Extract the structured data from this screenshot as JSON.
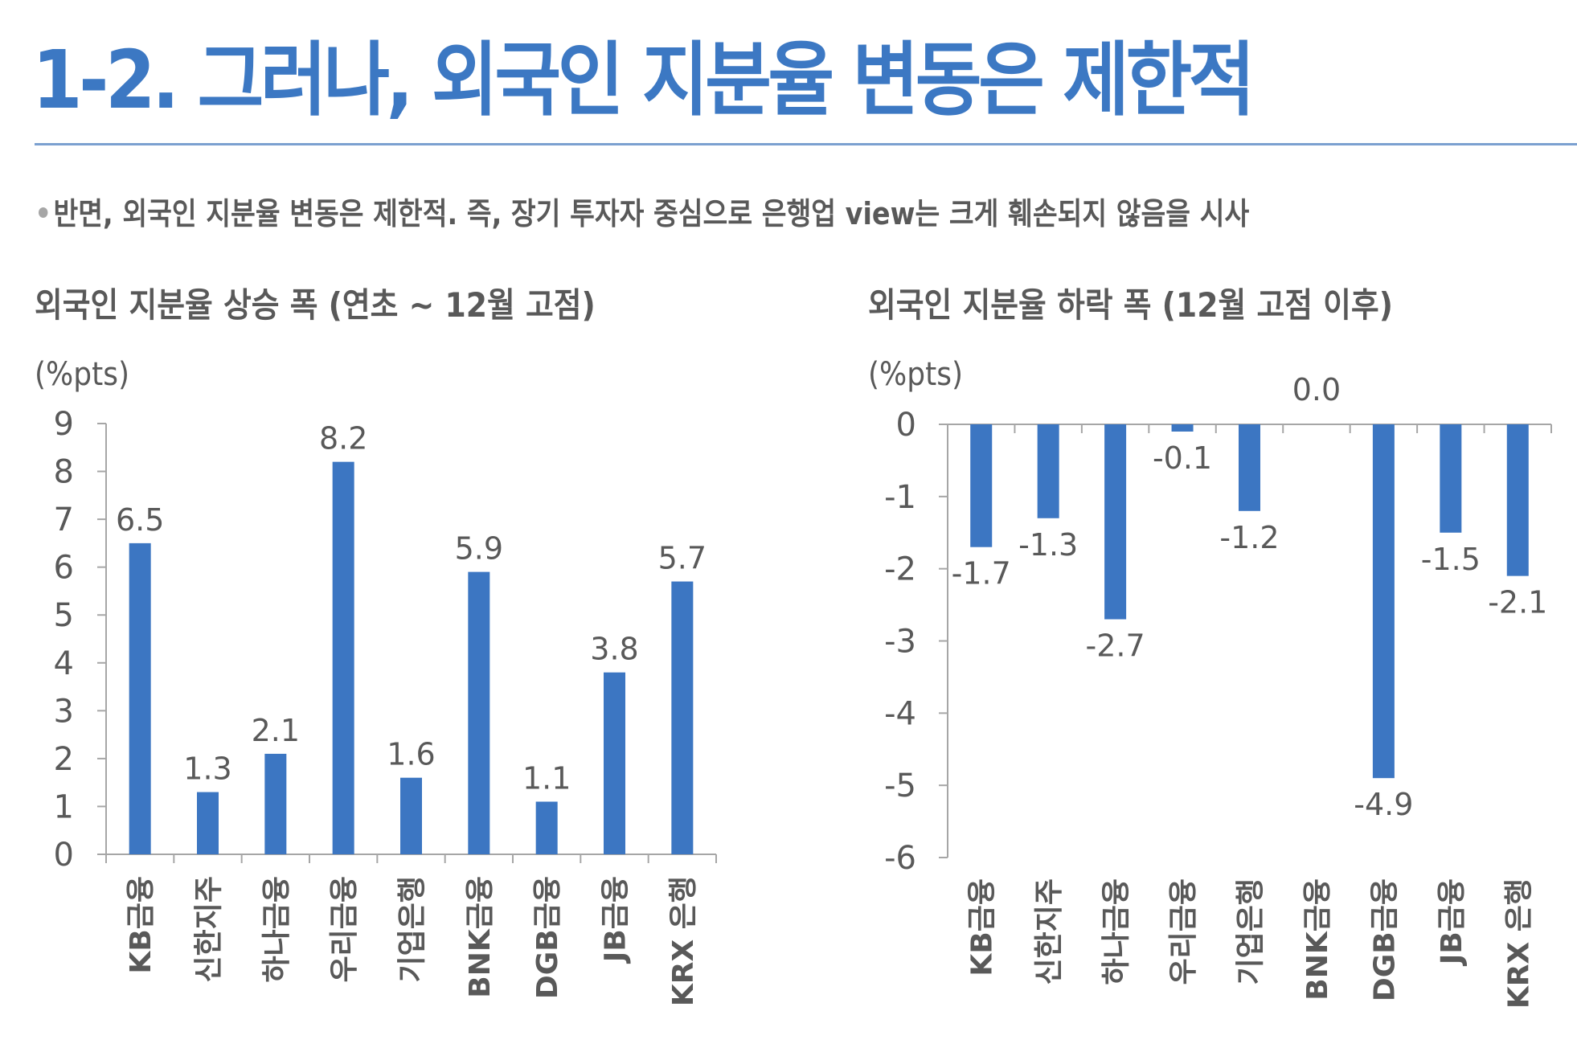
{
  "header": {
    "title": "1-2. 그러나, 외국인 지분율 변동은 제한적",
    "bullet_text": "반면, 외국인 지분율 변동은 제한적. 즉, 장기 투자자 중심으로 은행업 view는 크게 훼손되지 않음을 시사"
  },
  "colors": {
    "accent": "#3C78C3",
    "bar": "#3C76C2",
    "text": "#595959",
    "axis": "#A6A6A6",
    "divider": "#7BA0D0"
  },
  "chart_data": [
    {
      "type": "bar",
      "title": "외국인 지분율 상승 폭 (연초 ~ 12월 고점)",
      "ylabel": "(%pts)",
      "xlabel": "",
      "categories": [
        "KB금융",
        "신한지주",
        "하나금융",
        "우리금융",
        "기업은행",
        "BNK금융",
        "DGB금융",
        "JB금융",
        "KRX 은행"
      ],
      "values": [
        6.5,
        1.3,
        2.1,
        8.2,
        1.6,
        5.9,
        1.1,
        3.8,
        5.7
      ],
      "data_labels": [
        "6.5",
        "1.3",
        "2.1",
        "8.2",
        "1.6",
        "5.9",
        "1.1",
        "3.8",
        "5.7"
      ],
      "ylim": [
        0,
        9
      ],
      "yticks": [
        0,
        1,
        2,
        3,
        4,
        5,
        6,
        7,
        8,
        9
      ],
      "ytick_labels": [
        "0",
        "1",
        "2",
        "3",
        "4",
        "5",
        "6",
        "7",
        "8",
        "9"
      ],
      "grid": false,
      "legend": "none"
    },
    {
      "type": "bar",
      "title": "외국인 지분율 하락 폭 (12월 고점 이후)",
      "ylabel": "(%pts)",
      "xlabel": "",
      "categories": [
        "KB금융",
        "신한지주",
        "하나금융",
        "우리금융",
        "기업은행",
        "BNK금융",
        "DGB금융",
        "JB금융",
        "KRX 은행"
      ],
      "values": [
        -1.7,
        -1.3,
        -2.7,
        -0.1,
        -1.2,
        0.0,
        -4.9,
        -1.5,
        -2.1
      ],
      "data_labels": [
        "-1.7",
        "-1.3",
        "-2.7",
        "-0.1",
        "-1.2",
        "0.0",
        "-4.9",
        "-1.5",
        "-2.1"
      ],
      "ylim": [
        -6,
        0
      ],
      "yticks": [
        0,
        -1,
        -2,
        -3,
        -4,
        -5,
        -6
      ],
      "ytick_labels": [
        "0",
        "-1",
        "-2",
        "-3",
        "-4",
        "-5",
        "-6"
      ],
      "grid": false,
      "legend": "none"
    }
  ]
}
